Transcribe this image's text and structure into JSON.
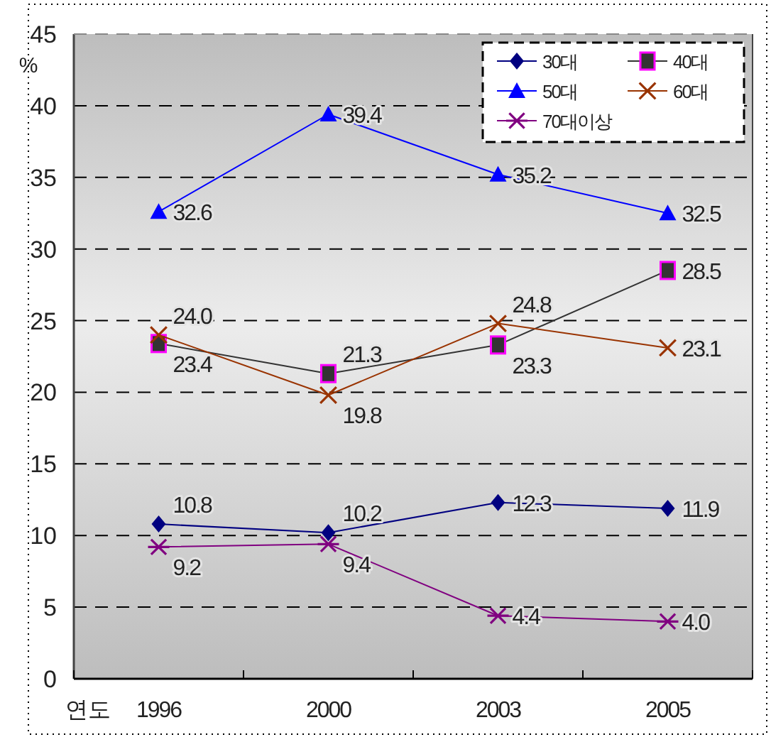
{
  "chart_data": {
    "type": "line",
    "xlabel": "연도",
    "ylabel": "%",
    "categories": [
      "1996",
      "2000",
      "2003",
      "2005"
    ],
    "ylim": [
      0,
      45
    ],
    "yticks": [
      0,
      5,
      10,
      15,
      20,
      25,
      30,
      35,
      40,
      45
    ],
    "grid": "y",
    "legend": "top right",
    "data_labels": true,
    "series": [
      {
        "name": "30대",
        "color": "#000080",
        "marker": "diamond",
        "values": [
          10.8,
          10.2,
          12.3,
          11.9
        ],
        "value_labels": [
          "10.8",
          "10.2",
          "12.3",
          "11.9"
        ]
      },
      {
        "name": "40대",
        "color": "#333333",
        "marker": "square",
        "values": [
          23.4,
          21.3,
          23.3,
          28.5
        ],
        "value_labels": [
          "23.4",
          "21.3",
          "23.3",
          "28.5"
        ]
      },
      {
        "name": "50대",
        "color": "#0000ff",
        "marker": "triangle",
        "values": [
          32.6,
          39.4,
          35.2,
          32.5
        ],
        "value_labels": [
          "32.6",
          "39.4",
          "35.2",
          "32.5"
        ]
      },
      {
        "name": "60대",
        "color": "#993300",
        "marker": "cross",
        "values": [
          24.0,
          19.8,
          24.8,
          23.1
        ],
        "value_labels": [
          "24.0",
          "19.8",
          "24.8",
          "23.1"
        ]
      },
      {
        "name": "70대이상",
        "color": "#800080",
        "marker": "star",
        "values": [
          9.2,
          9.4,
          4.4,
          4.0
        ],
        "value_labels": [
          "9.2",
          "9.4",
          "4.4",
          "4.0"
        ]
      }
    ]
  }
}
